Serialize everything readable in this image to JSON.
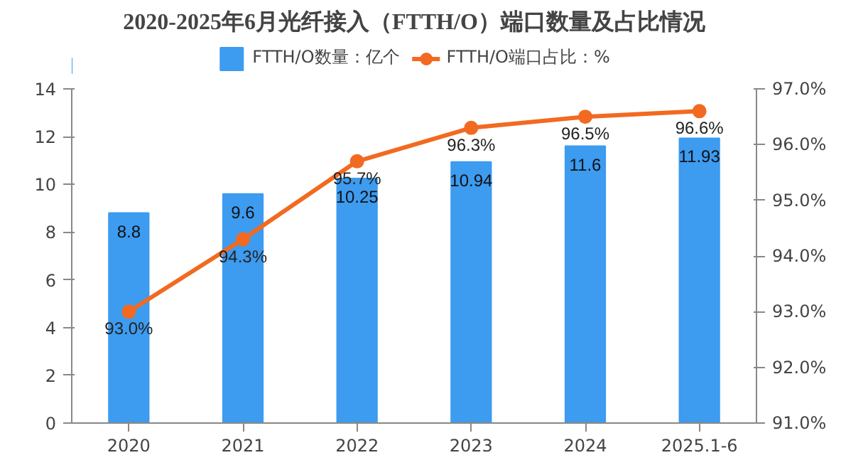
{
  "chart_data": {
    "type": "bar",
    "title": "2020-2025年6月光纤接入（FTTH/O）端口数量及占比情况",
    "categories": [
      "2020",
      "2021",
      "2022",
      "2023",
      "2024",
      "2025.1-6"
    ],
    "series": [
      {
        "name": "FTTH/O数量：亿个",
        "color": "#3d9bf0",
        "values": [
          8.8,
          9.6,
          10.25,
          10.94,
          11.6,
          11.93
        ]
      },
      {
        "name": "FTTH/O端口占比：%",
        "type": "line",
        "axis": "y2",
        "color": "#f26a21",
        "values": [
          93.0,
          94.3,
          95.7,
          96.3,
          96.5,
          96.6
        ],
        "value_labels": [
          "93.0%",
          "94.3%",
          "95.7%",
          "96.3%",
          "96.5%",
          "96.6%"
        ]
      }
    ],
    "ylim": [
      0,
      14
    ],
    "yticks": [
      0,
      2,
      4,
      6,
      8,
      10,
      12,
      14
    ],
    "y2lim": [
      91,
      97
    ],
    "y2ticks": [
      {
        "value": 91,
        "label": "91.0%"
      },
      {
        "value": 92,
        "label": "92.0%"
      },
      {
        "value": 93,
        "label": "93.0%"
      },
      {
        "value": 94,
        "label": "94.0%"
      },
      {
        "value": 95,
        "label": "95.0%"
      },
      {
        "value": 96,
        "label": "96.0%"
      },
      {
        "value": 97,
        "label": "97.0%"
      }
    ],
    "data_labels": true,
    "legend": "top",
    "marker": "circle",
    "grid": false
  }
}
